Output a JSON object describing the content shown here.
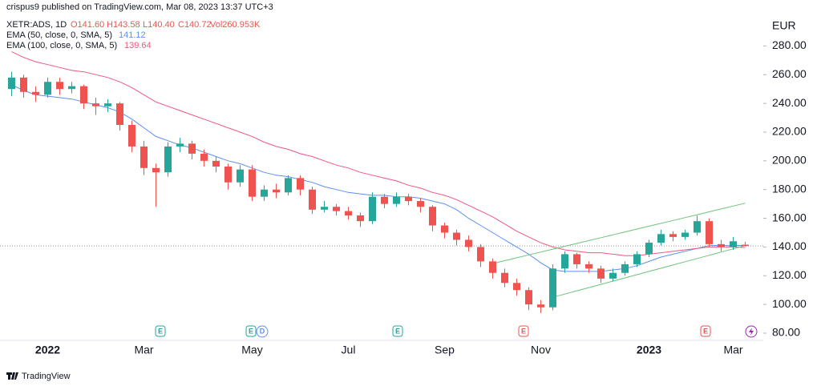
{
  "chart_data": {
    "type": "candlestick",
    "header": {
      "publisher": "crispus9 published on TradingView.com, Mar 08, 2023 13:37 UTC+3",
      "symbol": "XETR:ADS, 1D",
      "ohlc": [
        "O141.60",
        "H143.58",
        "L140.40",
        "C140.72",
        "Vol260.953K"
      ]
    },
    "y_label": "EUR",
    "categories": [
      null,
      null,
      null,
      "2022",
      null,
      null,
      null,
      null,
      null,
      null,
      null,
      "Mar",
      null,
      null,
      null,
      null,
      null,
      null,
      null,
      null,
      "May",
      null,
      null,
      null,
      null,
      null,
      null,
      null,
      "Jul",
      null,
      null,
      null,
      null,
      null,
      null,
      null,
      "Sep",
      null,
      null,
      null,
      null,
      null,
      null,
      null,
      "Nov",
      null,
      null,
      null,
      null,
      null,
      null,
      null,
      null,
      "2023",
      null,
      null,
      null,
      null,
      null,
      null,
      "Mar",
      null
    ],
    "open": [
      250,
      258,
      248,
      246,
      255,
      250,
      252,
      240,
      238,
      240,
      225,
      210,
      195,
      192,
      210,
      212,
      205,
      200,
      196,
      185,
      194,
      175,
      180,
      178,
      188,
      180,
      166,
      168,
      165,
      162,
      158,
      175,
      170,
      175,
      172,
      168,
      155,
      150,
      145,
      140,
      130,
      122,
      115,
      110,
      100,
      98,
      125,
      135,
      128,
      125,
      118,
      122,
      128,
      135,
      143,
      149,
      147,
      150,
      158,
      142,
      140,
      141.6
    ],
    "high": [
      262,
      260,
      252,
      258,
      258,
      255,
      253,
      244,
      243,
      241,
      228,
      214,
      198,
      213,
      216,
      214,
      208,
      203,
      198,
      197,
      197,
      183,
      184,
      190,
      190,
      182,
      172,
      170,
      168,
      164,
      178,
      177,
      178,
      177,
      174,
      169,
      157,
      152,
      148,
      142,
      132,
      125,
      118,
      112,
      103,
      128,
      137,
      136,
      130,
      127,
      125,
      130,
      137,
      145,
      152,
      151,
      152,
      162,
      160,
      145,
      147,
      143.58
    ],
    "low": [
      245,
      244,
      241,
      244,
      246,
      247,
      236,
      232,
      234,
      221,
      206,
      190,
      168,
      189,
      206,
      201,
      196,
      192,
      180,
      182,
      172,
      172,
      174,
      176,
      176,
      163,
      164,
      162,
      159,
      154,
      156,
      167,
      168,
      169,
      164,
      151,
      146,
      141,
      137,
      126,
      118,
      112,
      106,
      96,
      94,
      96,
      122,
      125,
      122,
      115,
      116,
      120,
      126,
      133,
      141,
      144,
      145,
      148,
      140,
      137,
      138,
      140.4
    ],
    "close": [
      258,
      248,
      246,
      255,
      250,
      252,
      240,
      238,
      240,
      225,
      210,
      195,
      192,
      210,
      212,
      205,
      200,
      196,
      185,
      194,
      175,
      180,
      178,
      188,
      180,
      166,
      168,
      165,
      162,
      158,
      175,
      170,
      175,
      172,
      168,
      155,
      150,
      145,
      140,
      130,
      122,
      115,
      110,
      100,
      98,
      125,
      135,
      128,
      125,
      118,
      122,
      128,
      135,
      143,
      149,
      147,
      150,
      158,
      142,
      140,
      144,
      140.72
    ],
    "up_color": "#26a69a",
    "down_color": "#ef5350",
    "series": [
      {
        "name": "EMA (50, close, 0, SMA, 5)",
        "color": "#5b8ff0",
        "values": [
          253,
          249,
          246,
          245,
          244,
          243,
          241,
          239,
          237,
          234,
          229,
          223,
          217,
          214,
          211,
          209,
          206,
          203,
          200,
          198,
          195,
          192,
          190,
          189,
          187,
          185,
          182,
          180,
          178,
          177,
          176,
          176,
          175,
          175,
          174,
          172,
          170,
          166,
          160,
          155,
          150,
          145,
          140,
          135,
          129,
          124,
          123,
          123,
          123,
          123,
          124,
          125,
          127,
          130,
          133,
          135,
          137,
          139,
          141,
          141,
          141,
          141.12
        ]
      },
      {
        "name": "EMA (100, close, 0, SMA, 5)",
        "color": "#f0577f",
        "values": [
          276,
          272,
          269,
          267,
          265,
          263,
          262,
          260,
          258,
          255,
          251,
          246,
          241,
          238,
          235,
          232,
          229,
          226,
          223,
          220,
          217,
          213,
          210,
          208,
          205,
          203,
          200,
          197,
          195,
          192,
          190,
          188,
          186,
          183,
          181,
          178,
          176,
          173,
          169,
          165,
          161,
          156,
          151,
          147,
          143,
          140,
          138,
          137,
          136,
          136,
          135,
          134,
          134,
          135,
          136,
          137,
          138,
          139,
          140,
          140,
          140,
          139.64
        ]
      }
    ],
    "trendlines": [
      {
        "color": "#6cc47a",
        "values": [
          null,
          null,
          null,
          null,
          null,
          null,
          null,
          null,
          null,
          null,
          null,
          null,
          null,
          null,
          null,
          null,
          null,
          null,
          null,
          null,
          null,
          null,
          null,
          null,
          null,
          null,
          null,
          null,
          null,
          null,
          null,
          null,
          null,
          null,
          null,
          null,
          null,
          null,
          null,
          null,
          128.5,
          130.5,
          132.5,
          134.5,
          136.5,
          138.5,
          140.5,
          142.5,
          144.5,
          146.5,
          148.5,
          150.5,
          152.5,
          154.5,
          156.5,
          158.5,
          160.5,
          162.5,
          164.5,
          166.5,
          168.5,
          170.5
        ]
      },
      {
        "color": "#6cc47a",
        "values": [
          null,
          null,
          null,
          null,
          null,
          null,
          null,
          null,
          null,
          null,
          null,
          null,
          null,
          null,
          null,
          null,
          null,
          null,
          null,
          null,
          null,
          null,
          null,
          null,
          null,
          null,
          null,
          null,
          null,
          null,
          null,
          null,
          null,
          null,
          null,
          null,
          null,
          null,
          null,
          null,
          null,
          null,
          null,
          null,
          null,
          105,
          107.25,
          109.5,
          111.75,
          114,
          116.25,
          118.5,
          120.75,
          123,
          125.25,
          127.5,
          129.75,
          132,
          134.25,
          136.5,
          138.75,
          141
        ]
      }
    ],
    "events": [
      "E",
      "E",
      "D",
      "E",
      "E",
      "E"
    ],
    "ylim": [
      75,
      312
    ],
    "yticks": [
      {
        "value": 80,
        "label": "80.00"
      },
      {
        "value": 100,
        "label": "100.00"
      },
      {
        "value": 120,
        "label": "120.00"
      },
      {
        "value": 140,
        "label": "140.00"
      },
      {
        "value": 160,
        "label": "160.00"
      },
      {
        "value": 180,
        "label": "180.00"
      },
      {
        "value": 200,
        "label": "200.00"
      },
      {
        "value": 220,
        "label": "220.00"
      },
      {
        "value": 240,
        "label": "240.00"
      },
      {
        "value": 260,
        "label": "260.00"
      },
      {
        "value": 280,
        "label": "280.00"
      }
    ],
    "brand": "TradingView"
  }
}
